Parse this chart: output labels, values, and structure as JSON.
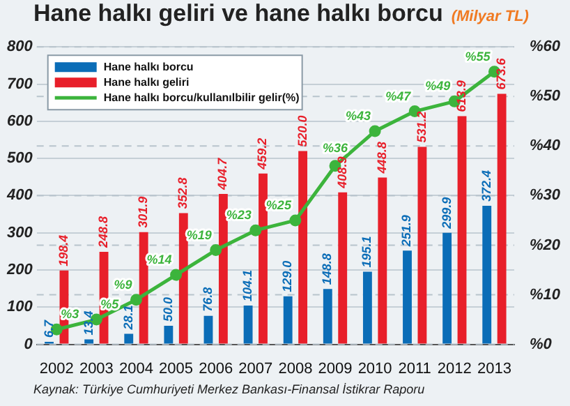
{
  "chart_data": {
    "type": "bar",
    "title": "Hane halkı geliri ve hane halkı borcu",
    "subtitle": "(Milyar TL)",
    "annotations": [
      "Kaynak: Türkiye Cumhuriyeti Merkez Bankası-Finansal İstikrar Raporu"
    ],
    "categories": [
      "2002",
      "2003",
      "2004",
      "2005",
      "2006",
      "2007",
      "2008",
      "2009",
      "2010",
      "2011",
      "2012",
      "2013"
    ],
    "series": [
      {
        "name": "Hane halkı borcu",
        "color": "#0b6db7",
        "values": [
          6.7,
          13.4,
          28.1,
          50.0,
          76.8,
          104.1,
          129.0,
          148.8,
          195.1,
          251.9,
          299.9,
          372.4
        ],
        "value_labels": [
          "6.7",
          "13.4",
          "28.1",
          "50.0",
          "76.8",
          "104.1",
          "129.0",
          "148.8",
          "195.1",
          "251.9",
          "299.9",
          "372.4"
        ]
      },
      {
        "name": "Hane halkı geliri",
        "color": "#e81f2a",
        "values": [
          198.4,
          248.8,
          301.9,
          352.8,
          404.7,
          459.2,
          520.0,
          408.9,
          448.8,
          531.2,
          613.9,
          673.6
        ],
        "value_labels": [
          "198.4",
          "248.8",
          "301.9",
          "352.8",
          "404.7",
          "459.2",
          "520.0",
          "408.9",
          "448.8",
          "531.2",
          "613.9",
          "673.6"
        ]
      },
      {
        "name": "Hane halkı borcu/kullanılbilir gelir(%)",
        "type": "line",
        "axis": "y2",
        "color": "#3cb43c",
        "marker": "circle",
        "values": [
          3,
          5,
          9,
          14,
          19,
          23,
          25,
          36,
          43,
          47,
          49,
          55
        ],
        "value_labels": [
          "%3",
          "%5",
          "%9",
          "%14",
          "%19",
          "%23",
          "%25",
          "%36",
          "%43",
          "%47",
          "%49",
          "%55"
        ]
      }
    ],
    "ylim": [
      0,
      800
    ],
    "yticks": [
      0,
      100,
      200,
      300,
      400,
      500,
      600,
      700,
      800
    ],
    "y2lim": [
      0,
      60
    ],
    "y2ticks": [
      {
        "value": 0,
        "label": "%0"
      },
      {
        "value": 10,
        "label": "%10"
      },
      {
        "value": 20,
        "label": "%20"
      },
      {
        "value": 30,
        "label": "%30"
      },
      {
        "value": 40,
        "label": "%40"
      },
      {
        "value": 50,
        "label": "%50"
      },
      {
        "value": 60,
        "label": "%60"
      }
    ],
    "grid": "y",
    "legend": "top left"
  }
}
